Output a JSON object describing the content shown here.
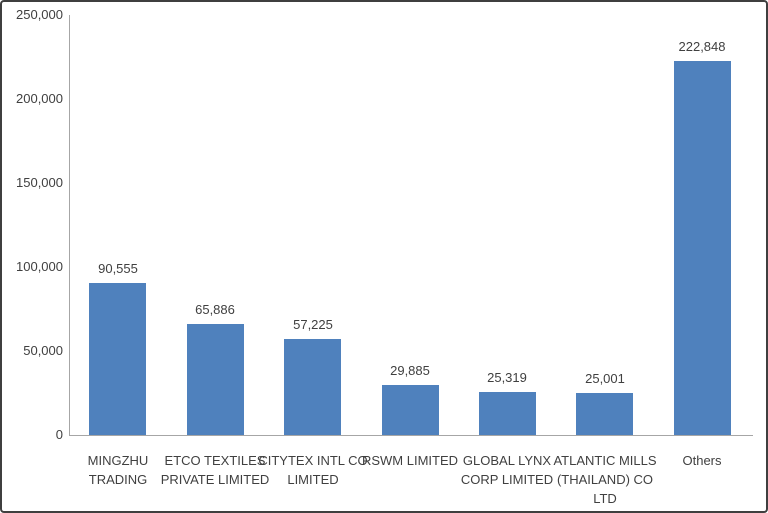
{
  "chart_data": {
    "type": "bar",
    "title": "",
    "xlabel": "",
    "ylabel": "",
    "categories": [
      "MINGZHU\nTRADING",
      "ETCO TEXTILES\nPRIVATE LIMITED",
      "CITYTEX INTL CO\nLIMITED",
      "RSWM LIMITED",
      "GLOBAL LYNX\nCORP LIMITED",
      "ATLANTIC MILLS\n(THAILAND) CO\nLTD",
      "Others"
    ],
    "values": [
      90555,
      65886,
      57225,
      29885,
      25319,
      25001,
      222848
    ],
    "value_labels": [
      "90,555",
      "65,886",
      "57,225",
      "29,885",
      "25,319",
      "25,001",
      "222,848"
    ],
    "ylim": [
      0,
      250000
    ],
    "y_tick_values": [
      0,
      50000,
      100000,
      150000,
      200000,
      250000
    ],
    "y_tick_labels": [
      "0",
      "50,000",
      "100,000",
      "150,000",
      "200,000",
      "250,000"
    ],
    "grid": false,
    "legend": "none",
    "bar_color": "#4f81bd",
    "axis_line_color": "#a6a6a6",
    "text_color": "#404040"
  }
}
